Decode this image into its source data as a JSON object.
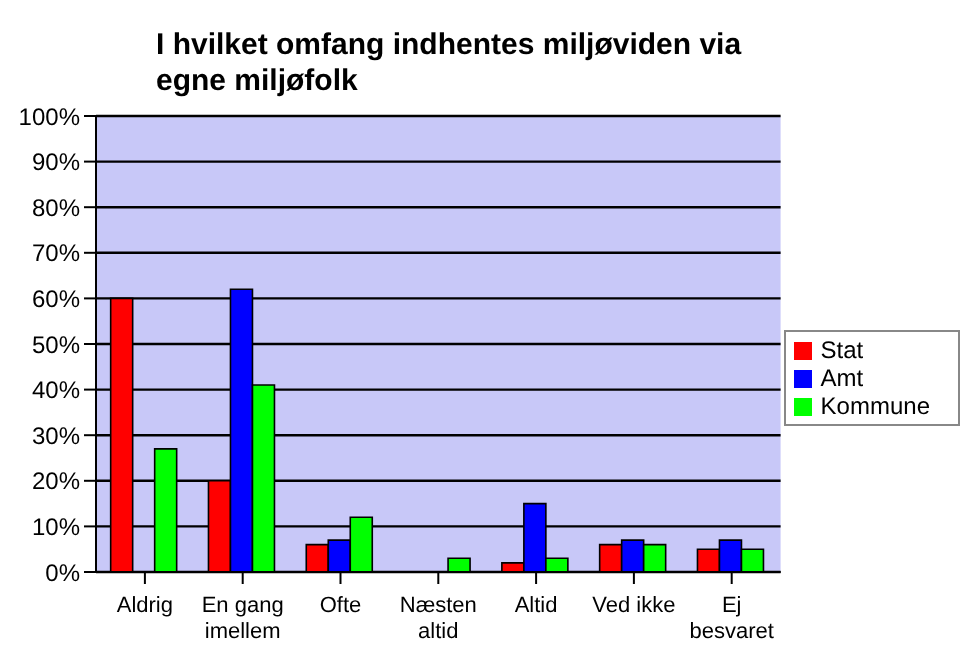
{
  "chart_data": {
    "type": "bar",
    "title": "I hvilket omfang indhentes miljøviden via egne miljøfolk",
    "categories": [
      "Aldrig",
      "En gang imellem",
      "Ofte",
      "Næsten altid",
      "Altid",
      "Ved ikke",
      "Ej besvaret"
    ],
    "series": [
      {
        "name": "Stat",
        "color": "#ff0000",
        "values": [
          60,
          20,
          6,
          0,
          2,
          6,
          5
        ]
      },
      {
        "name": "Amt",
        "color": "#0000ff",
        "values": [
          0,
          62,
          7,
          0,
          15,
          7,
          7
        ]
      },
      {
        "name": "Kommune",
        "color": "#00ff00",
        "values": [
          27,
          41,
          12,
          3,
          3,
          6,
          5
        ]
      }
    ],
    "ylim": [
      0,
      100
    ],
    "yticks": [
      {
        "value": 0,
        "label": "0%"
      },
      {
        "value": 10,
        "label": "10%"
      },
      {
        "value": 20,
        "label": "20%"
      },
      {
        "value": 30,
        "label": "30%"
      },
      {
        "value": 40,
        "label": "40%"
      },
      {
        "value": 50,
        "label": "50%"
      },
      {
        "value": 60,
        "label": "60%"
      },
      {
        "value": 70,
        "label": "70%"
      },
      {
        "value": 80,
        "label": "80%"
      },
      {
        "value": 90,
        "label": "90%"
      },
      {
        "value": 100,
        "label": "100%"
      }
    ],
    "grid": "y",
    "legend": "right"
  }
}
